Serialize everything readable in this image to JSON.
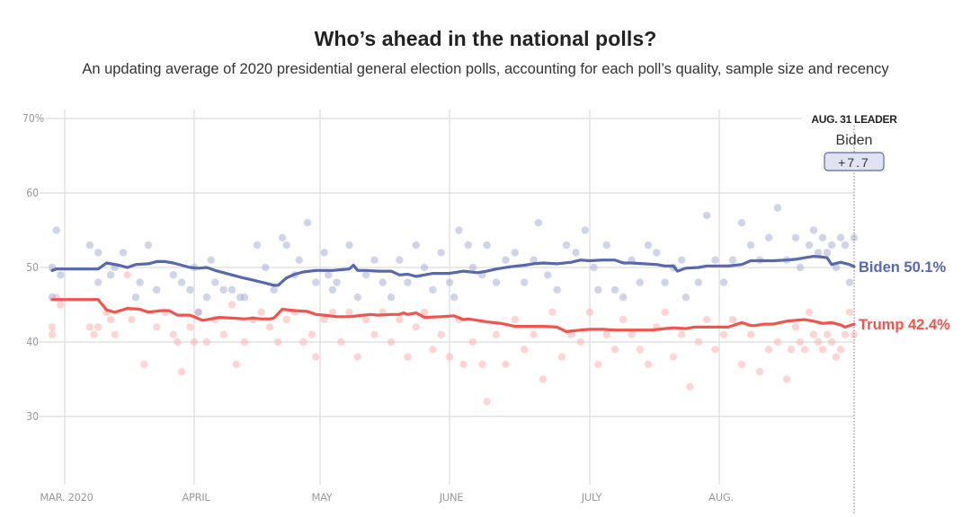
{
  "header": {
    "title": "Who’s ahead in the national polls?",
    "subtitle": "An updating average of 2020 presidential general election polls, accounting for each poll’s quality, sample size and recency"
  },
  "leader_box": {
    "heading": "AUG. 31 LEADER",
    "name": "Biden",
    "margin": "+7.7"
  },
  "chart_data": {
    "type": "line",
    "title": "Who’s ahead in the national polls?",
    "subtitle": "An updating average of 2020 presidential general election polls, accounting for each poll’s quality, sample size and recency",
    "xlabel": "",
    "ylabel": "",
    "x_unit": "days since Mar. 1, 2020",
    "xlim": [
      -3,
      183
    ],
    "ylim": [
      20,
      70
    ],
    "grid": true,
    "yticks": [
      {
        "value": 70,
        "label": "70%"
      },
      {
        "value": 60,
        "label": "60"
      },
      {
        "value": 50,
        "label": "50"
      },
      {
        "value": 40,
        "label": "40"
      },
      {
        "value": 30,
        "label": "30"
      }
    ],
    "xticks": [
      {
        "value": 0,
        "label": "MAR. 2020"
      },
      {
        "value": 31,
        "label": "APRIL"
      },
      {
        "value": 61,
        "label": "MAY"
      },
      {
        "value": 92,
        "label": "JUNE"
      },
      {
        "value": 122,
        "label": "JULY"
      },
      {
        "value": 153,
        "label": "AUG."
      }
    ],
    "marker_line": {
      "x": 183,
      "label": "AUG. 31 LEADER"
    },
    "series": [
      {
        "name": "Biden",
        "end_label": "Biden 50.1%",
        "final_value": 50.1,
        "color": "#5768ac",
        "dot_color": "#a7b0d6",
        "x": [
          -3,
          -2,
          0,
          3,
          6,
          8,
          10,
          13,
          15,
          17,
          20,
          22,
          24,
          26,
          28,
          30,
          32,
          34,
          36,
          38,
          40,
          42,
          45,
          48,
          50,
          51,
          53,
          55,
          57,
          60,
          62,
          64,
          66,
          68,
          69,
          70,
          72,
          75,
          78,
          80,
          82,
          84,
          86,
          88,
          90,
          92,
          95,
          98,
          100,
          102,
          105,
          108,
          110,
          112,
          115,
          118,
          120,
          122,
          125,
          128,
          130,
          132,
          135,
          138,
          140,
          142,
          143,
          145,
          148,
          150,
          152,
          155,
          158,
          160,
          162,
          165,
          168,
          170,
          172,
          174,
          176,
          177,
          178,
          180,
          182,
          183
        ],
        "values": [
          49.6,
          49.8,
          49.8,
          49.8,
          49.8,
          49.8,
          50.6,
          50.3,
          50.0,
          50.4,
          50.5,
          50.8,
          50.8,
          50.6,
          50.3,
          50.0,
          49.9,
          50.0,
          49.6,
          49.3,
          49.0,
          48.7,
          48.3,
          47.9,
          47.6,
          47.6,
          48.6,
          49.1,
          49.4,
          49.6,
          49.6,
          49.6,
          49.7,
          49.8,
          50.3,
          49.6,
          49.6,
          49.5,
          49.5,
          49.0,
          49.1,
          48.8,
          49.0,
          49.2,
          49.2,
          49.2,
          49.5,
          49.3,
          49.5,
          49.8,
          50.1,
          50.3,
          50.5,
          50.6,
          50.5,
          50.7,
          51.0,
          50.9,
          51.0,
          51.0,
          50.6,
          50.6,
          50.5,
          50.4,
          50.2,
          50.2,
          49.5,
          49.9,
          50.0,
          50.2,
          50.2,
          50.2,
          50.4,
          50.9,
          50.9,
          50.9,
          51.0,
          51.1,
          51.3,
          51.5,
          51.4,
          51.3,
          50.4,
          50.7,
          50.4,
          50.1
        ]
      },
      {
        "name": "Trump",
        "end_label": "Trump 42.4%",
        "final_value": 42.4,
        "color": "#f4534b",
        "dot_color": "#ffb3b0",
        "x": [
          -3,
          0,
          3,
          6,
          8,
          10,
          12,
          15,
          18,
          20,
          23,
          25,
          27,
          30,
          33,
          35,
          37,
          40,
          43,
          45,
          47,
          49,
          50,
          52,
          55,
          58,
          60,
          62,
          65,
          68,
          70,
          73,
          75,
          78,
          80,
          81,
          82,
          84,
          86,
          90,
          93,
          95,
          96,
          98,
          100,
          103,
          106,
          110,
          112,
          115,
          117,
          120,
          122,
          125,
          128,
          130,
          133,
          137,
          140,
          142,
          145,
          147,
          150,
          155,
          158,
          160,
          161,
          163,
          165,
          168,
          170,
          172,
          174,
          176,
          178,
          180,
          181,
          183
        ],
        "values": [
          45.7,
          45.7,
          45.7,
          45.7,
          45.7,
          44.3,
          44.0,
          44.5,
          44.4,
          44.0,
          44.2,
          44.2,
          43.6,
          43.6,
          42.9,
          43.1,
          43.3,
          43.2,
          43.1,
          43.2,
          43.1,
          43.1,
          43.2,
          44.4,
          44.2,
          44.1,
          43.7,
          43.6,
          43.4,
          43.4,
          43.5,
          43.7,
          43.6,
          43.7,
          43.7,
          43.9,
          43.7,
          43.9,
          43.3,
          43.4,
          43.5,
          43.0,
          43.1,
          42.9,
          42.7,
          42.5,
          42.1,
          42.1,
          42.1,
          42.0,
          41.4,
          41.6,
          41.7,
          41.7,
          41.6,
          41.6,
          41.6,
          41.6,
          41.8,
          41.9,
          41.8,
          42.0,
          42.0,
          42.0,
          42.6,
          42.2,
          42.2,
          42.4,
          42.4,
          42.8,
          42.9,
          43.0,
          42.8,
          42.5,
          42.6,
          42.3,
          42.0,
          42.4
        ]
      }
    ],
    "polls": {
      "Biden": [
        [
          -3,
          50
        ],
        [
          -3,
          46
        ],
        [
          -2,
          55
        ],
        [
          -1,
          49
        ],
        [
          6,
          53
        ],
        [
          8,
          48
        ],
        [
          8,
          52
        ],
        [
          11,
          49
        ],
        [
          12,
          50
        ],
        [
          14,
          52
        ],
        [
          17,
          46
        ],
        [
          18,
          48
        ],
        [
          20,
          53
        ],
        [
          22,
          47
        ],
        [
          26,
          49
        ],
        [
          28,
          48
        ],
        [
          30,
          47
        ],
        [
          31,
          50
        ],
        [
          32,
          44
        ],
        [
          34,
          46
        ],
        [
          35,
          51
        ],
        [
          36,
          48
        ],
        [
          38,
          47
        ],
        [
          40,
          47
        ],
        [
          42,
          46
        ],
        [
          43,
          46
        ],
        [
          46,
          53
        ],
        [
          48,
          50
        ],
        [
          50,
          47
        ],
        [
          52,
          54
        ],
        [
          53,
          53
        ],
        [
          55,
          49
        ],
        [
          56,
          51
        ],
        [
          58,
          56
        ],
        [
          60,
          48
        ],
        [
          62,
          52
        ],
        [
          63,
          49
        ],
        [
          64,
          47
        ],
        [
          65,
          48
        ],
        [
          68,
          53
        ],
        [
          70,
          46
        ],
        [
          72,
          49
        ],
        [
          74,
          51
        ],
        [
          76,
          48
        ],
        [
          78,
          46
        ],
        [
          80,
          51
        ],
        [
          82,
          48
        ],
        [
          84,
          53
        ],
        [
          86,
          50
        ],
        [
          88,
          47
        ],
        [
          90,
          52
        ],
        [
          92,
          48
        ],
        [
          93,
          46
        ],
        [
          94,
          55
        ],
        [
          96,
          53
        ],
        [
          97,
          50
        ],
        [
          99,
          49
        ],
        [
          100,
          53
        ],
        [
          102,
          48
        ],
        [
          104,
          51
        ],
        [
          106,
          52
        ],
        [
          108,
          48
        ],
        [
          110,
          51
        ],
        [
          111,
          56
        ],
        [
          113,
          49
        ],
        [
          115,
          47
        ],
        [
          117,
          53
        ],
        [
          119,
          52
        ],
        [
          121,
          55
        ],
        [
          123,
          50
        ],
        [
          124,
          47
        ],
        [
          126,
          53
        ],
        [
          128,
          47
        ],
        [
          130,
          46
        ],
        [
          132,
          51
        ],
        [
          134,
          48
        ],
        [
          136,
          53
        ],
        [
          138,
          52
        ],
        [
          140,
          48
        ],
        [
          142,
          50
        ],
        [
          144,
          51
        ],
        [
          145,
          46
        ],
        [
          148,
          48
        ],
        [
          150,
          57
        ],
        [
          152,
          51
        ],
        [
          154,
          48
        ],
        [
          156,
          51
        ],
        [
          158,
          56
        ],
        [
          160,
          53
        ],
        [
          162,
          51
        ],
        [
          164,
          54
        ],
        [
          166,
          58
        ],
        [
          168,
          51
        ],
        [
          170,
          54
        ],
        [
          171,
          50
        ],
        [
          173,
          53
        ],
        [
          174,
          55
        ],
        [
          175,
          52
        ],
        [
          176,
          54
        ],
        [
          177,
          52
        ],
        [
          178,
          53
        ],
        [
          179,
          50
        ],
        [
          180,
          54
        ],
        [
          181,
          53
        ],
        [
          182,
          48
        ],
        [
          183,
          54
        ]
      ],
      "Trump": [
        [
          -3,
          42
        ],
        [
          -3,
          41
        ],
        [
          -2,
          46
        ],
        [
          -1,
          45
        ],
        [
          6,
          42
        ],
        [
          7,
          41
        ],
        [
          8,
          42
        ],
        [
          10,
          44
        ],
        [
          11,
          43
        ],
        [
          12,
          41
        ],
        [
          15,
          49
        ],
        [
          16,
          43
        ],
        [
          19,
          37
        ],
        [
          22,
          42
        ],
        [
          24,
          44
        ],
        [
          26,
          41
        ],
        [
          27,
          40
        ],
        [
          28,
          36
        ],
        [
          30,
          42
        ],
        [
          31,
          40
        ],
        [
          32,
          44
        ],
        [
          34,
          40
        ],
        [
          36,
          43
        ],
        [
          38,
          41
        ],
        [
          40,
          45
        ],
        [
          41,
          37
        ],
        [
          43,
          40
        ],
        [
          45,
          43
        ],
        [
          47,
          44
        ],
        [
          49,
          42
        ],
        [
          51,
          40
        ],
        [
          53,
          43
        ],
        [
          55,
          44
        ],
        [
          57,
          40
        ],
        [
          59,
          41
        ],
        [
          60,
          38
        ],
        [
          62,
          43
        ],
        [
          64,
          44
        ],
        [
          66,
          40
        ],
        [
          68,
          44
        ],
        [
          70,
          38
        ],
        [
          72,
          43
        ],
        [
          74,
          41
        ],
        [
          76,
          44
        ],
        [
          78,
          40
        ],
        [
          80,
          43
        ],
        [
          82,
          38
        ],
        [
          84,
          42
        ],
        [
          86,
          44
        ],
        [
          88,
          39
        ],
        [
          90,
          41
        ],
        [
          92,
          38
        ],
        [
          94,
          43
        ],
        [
          95,
          37
        ],
        [
          97,
          40
        ],
        [
          99,
          37
        ],
        [
          100,
          32
        ],
        [
          102,
          41
        ],
        [
          104,
          37
        ],
        [
          106,
          43
        ],
        [
          108,
          39
        ],
        [
          110,
          41
        ],
        [
          112,
          35
        ],
        [
          114,
          44
        ],
        [
          116,
          38
        ],
        [
          118,
          41
        ],
        [
          120,
          40
        ],
        [
          122,
          44
        ],
        [
          124,
          37
        ],
        [
          126,
          41
        ],
        [
          128,
          39
        ],
        [
          130,
          43
        ],
        [
          132,
          41
        ],
        [
          134,
          39
        ],
        [
          136,
          37
        ],
        [
          138,
          42
        ],
        [
          140,
          44
        ],
        [
          142,
          38
        ],
        [
          144,
          41
        ],
        [
          146,
          34
        ],
        [
          148,
          40
        ],
        [
          150,
          43
        ],
        [
          152,
          39
        ],
        [
          154,
          41
        ],
        [
          156,
          43
        ],
        [
          158,
          37
        ],
        [
          160,
          41
        ],
        [
          162,
          36
        ],
        [
          164,
          39
        ],
        [
          166,
          40
        ],
        [
          168,
          35
        ],
        [
          169,
          39
        ],
        [
          170,
          42
        ],
        [
          171,
          40
        ],
        [
          172,
          39
        ],
        [
          173,
          44
        ],
        [
          174,
          41
        ],
        [
          175,
          40
        ],
        [
          176,
          39
        ],
        [
          177,
          41
        ],
        [
          178,
          40
        ],
        [
          179,
          38
        ],
        [
          180,
          39
        ],
        [
          181,
          41
        ],
        [
          182,
          44
        ],
        [
          183,
          41
        ]
      ]
    }
  }
}
